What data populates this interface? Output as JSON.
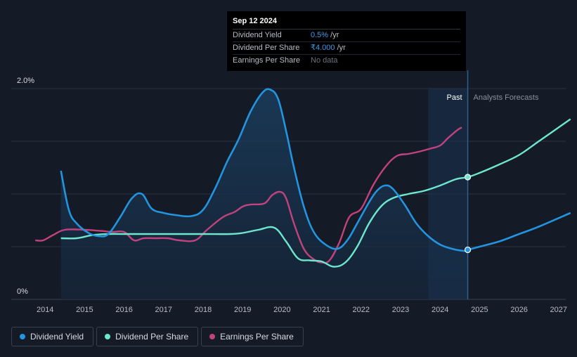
{
  "colors": {
    "background": "#141a26",
    "dividend_yield": "#2394df",
    "dividend_per_share": "#6ee7cf",
    "earnings_per_share": "#c0427e",
    "forecast_band": "#1a3350"
  },
  "tooltip": {
    "date": "Sep 12 2024",
    "rows": [
      {
        "label": "Dividend Yield",
        "value": "0.5%",
        "unit": " /yr"
      },
      {
        "label": "Dividend Per Share",
        "value": "₹4.000",
        "unit": " /yr"
      },
      {
        "label": "Earnings Per Share",
        "value": "No data",
        "unit": ""
      }
    ]
  },
  "legend": [
    {
      "label": "Dividend Yield",
      "color": "#2394df"
    },
    {
      "label": "Dividend Per Share",
      "color": "#6ee7cf"
    },
    {
      "label": "Earnings Per Share",
      "color": "#c0427e"
    }
  ],
  "chart_data": {
    "type": "line",
    "title": "",
    "xlabel": "",
    "ylabel": "",
    "xlim": [
      2013.7,
      2027.3
    ],
    "ylim": [
      0,
      2.0
    ],
    "y_axis_labels": [
      "2.0%",
      "0%"
    ],
    "x_ticks": [
      2014,
      2015,
      2016,
      2017,
      2018,
      2019,
      2020,
      2021,
      2022,
      2023,
      2024,
      2025,
      2026,
      2027
    ],
    "regions": {
      "past_label": "Past",
      "forecast_label": "Analysts Forecasts",
      "past_highlight_start": 2023.7,
      "now": 2024.7
    },
    "series": [
      {
        "name": "Dividend Yield",
        "unit": "%",
        "points": [
          [
            2014.4,
            1.22
          ],
          [
            2014.6,
            0.85
          ],
          [
            2014.8,
            0.72
          ],
          [
            2015.1,
            0.63
          ],
          [
            2015.35,
            0.6
          ],
          [
            2015.6,
            0.62
          ],
          [
            2015.9,
            0.78
          ],
          [
            2016.2,
            0.96
          ],
          [
            2016.45,
            1.0
          ],
          [
            2016.7,
            0.86
          ],
          [
            2017.0,
            0.82
          ],
          [
            2017.3,
            0.8
          ],
          [
            2017.7,
            0.79
          ],
          [
            2018.0,
            0.85
          ],
          [
            2018.3,
            1.05
          ],
          [
            2018.6,
            1.3
          ],
          [
            2018.9,
            1.52
          ],
          [
            2019.2,
            1.78
          ],
          [
            2019.5,
            1.96
          ],
          [
            2019.7,
            1.99
          ],
          [
            2019.9,
            1.9
          ],
          [
            2020.1,
            1.6
          ],
          [
            2020.3,
            1.25
          ],
          [
            2020.55,
            0.88
          ],
          [
            2020.8,
            0.64
          ],
          [
            2021.1,
            0.52
          ],
          [
            2021.4,
            0.48
          ],
          [
            2021.65,
            0.56
          ],
          [
            2021.9,
            0.72
          ],
          [
            2022.2,
            0.92
          ],
          [
            2022.4,
            1.03
          ],
          [
            2022.6,
            1.08
          ],
          [
            2022.8,
            1.05
          ],
          [
            2023.1,
            0.9
          ],
          [
            2023.4,
            0.72
          ],
          [
            2023.7,
            0.6
          ],
          [
            2024.0,
            0.52
          ],
          [
            2024.3,
            0.48
          ],
          [
            2024.6,
            0.46
          ],
          [
            2024.7,
            0.47
          ],
          [
            2025.0,
            0.5
          ],
          [
            2025.5,
            0.55
          ],
          [
            2026.0,
            0.62
          ],
          [
            2026.5,
            0.69
          ],
          [
            2027.3,
            0.82
          ]
        ],
        "marker": [
          2024.7,
          0.47
        ]
      },
      {
        "name": "Dividend Per Share",
        "points": [
          [
            2014.4,
            0.58
          ],
          [
            2014.8,
            0.58
          ],
          [
            2015.2,
            0.61
          ],
          [
            2015.6,
            0.62
          ],
          [
            2016.0,
            0.62
          ],
          [
            2016.5,
            0.62
          ],
          [
            2017.0,
            0.62
          ],
          [
            2017.5,
            0.62
          ],
          [
            2018.0,
            0.62
          ],
          [
            2018.7,
            0.62
          ],
          [
            2019.0,
            0.63
          ],
          [
            2019.4,
            0.66
          ],
          [
            2019.8,
            0.68
          ],
          [
            2020.1,
            0.55
          ],
          [
            2020.4,
            0.39
          ],
          [
            2020.7,
            0.37
          ],
          [
            2021.0,
            0.36
          ],
          [
            2021.3,
            0.31
          ],
          [
            2021.6,
            0.35
          ],
          [
            2021.9,
            0.5
          ],
          [
            2022.2,
            0.72
          ],
          [
            2022.5,
            0.88
          ],
          [
            2022.8,
            0.96
          ],
          [
            2023.2,
            1.0
          ],
          [
            2023.6,
            1.03
          ],
          [
            2024.0,
            1.08
          ],
          [
            2024.4,
            1.14
          ],
          [
            2024.7,
            1.16
          ],
          [
            2025.0,
            1.2
          ],
          [
            2025.5,
            1.28
          ],
          [
            2026.0,
            1.37
          ],
          [
            2026.5,
            1.5
          ],
          [
            2027.3,
            1.71
          ]
        ],
        "marker": [
          2024.7,
          1.16
        ]
      },
      {
        "name": "Earnings Per Share",
        "points": [
          [
            2013.75,
            0.56
          ],
          [
            2013.95,
            0.56
          ],
          [
            2014.2,
            0.61
          ],
          [
            2014.5,
            0.66
          ],
          [
            2015.0,
            0.66
          ],
          [
            2015.4,
            0.65
          ],
          [
            2015.7,
            0.64
          ],
          [
            2016.0,
            0.64
          ],
          [
            2016.25,
            0.56
          ],
          [
            2016.5,
            0.58
          ],
          [
            2016.8,
            0.58
          ],
          [
            2017.1,
            0.58
          ],
          [
            2017.4,
            0.56
          ],
          [
            2017.8,
            0.56
          ],
          [
            2018.1,
            0.66
          ],
          [
            2018.5,
            0.78
          ],
          [
            2018.8,
            0.83
          ],
          [
            2019.0,
            0.88
          ],
          [
            2019.2,
            0.9
          ],
          [
            2019.55,
            0.91
          ],
          [
            2019.75,
            0.99
          ],
          [
            2019.95,
            1.02
          ],
          [
            2020.1,
            0.96
          ],
          [
            2020.3,
            0.72
          ],
          [
            2020.55,
            0.48
          ],
          [
            2020.8,
            0.38
          ],
          [
            2021.0,
            0.35
          ],
          [
            2021.2,
            0.37
          ],
          [
            2021.45,
            0.54
          ],
          [
            2021.7,
            0.78
          ],
          [
            2022.0,
            0.86
          ],
          [
            2022.3,
            1.08
          ],
          [
            2022.6,
            1.25
          ],
          [
            2022.9,
            1.36
          ],
          [
            2023.2,
            1.38
          ],
          [
            2023.45,
            1.4
          ],
          [
            2023.75,
            1.43
          ],
          [
            2024.0,
            1.46
          ],
          [
            2024.2,
            1.53
          ],
          [
            2024.45,
            1.61
          ],
          [
            2024.55,
            1.63
          ]
        ]
      }
    ]
  }
}
